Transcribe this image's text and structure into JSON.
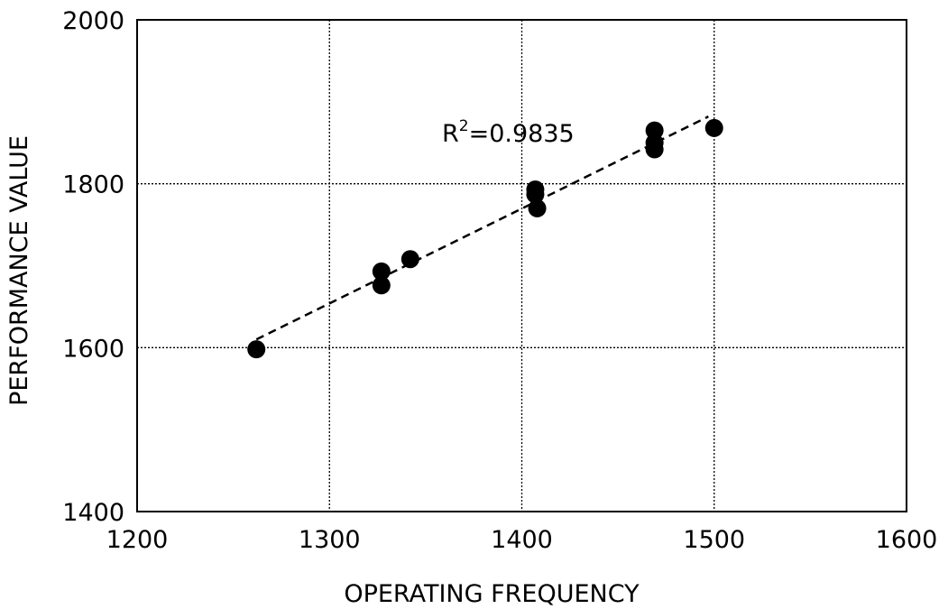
{
  "chart_data": {
    "type": "scatter",
    "xlabel": "OPERATING FREQUENCY",
    "ylabel": "PERFORMANCE VALUE",
    "xlim": [
      1200,
      1600
    ],
    "ylim": [
      1400,
      2000
    ],
    "xticks": [
      1200,
      1300,
      1400,
      1500,
      1600
    ],
    "yticks": [
      1400,
      1600,
      1800,
      2000
    ],
    "grid": true,
    "points": [
      {
        "x": 1262,
        "y": 1598
      },
      {
        "x": 1327,
        "y": 1693
      },
      {
        "x": 1327,
        "y": 1676
      },
      {
        "x": 1342,
        "y": 1708
      },
      {
        "x": 1407,
        "y": 1793
      },
      {
        "x": 1407,
        "y": 1787
      },
      {
        "x": 1408,
        "y": 1770
      },
      {
        "x": 1469,
        "y": 1865
      },
      {
        "x": 1469,
        "y": 1850
      },
      {
        "x": 1469,
        "y": 1842
      },
      {
        "x": 1500,
        "y": 1868
      }
    ],
    "trendline": {
      "style": "dashed",
      "x": [
        1262,
        1497
      ],
      "y": [
        1610,
        1882
      ]
    },
    "annotation": {
      "r_label": "R",
      "exponent": "2",
      "value_text": "=0.9835"
    }
  }
}
